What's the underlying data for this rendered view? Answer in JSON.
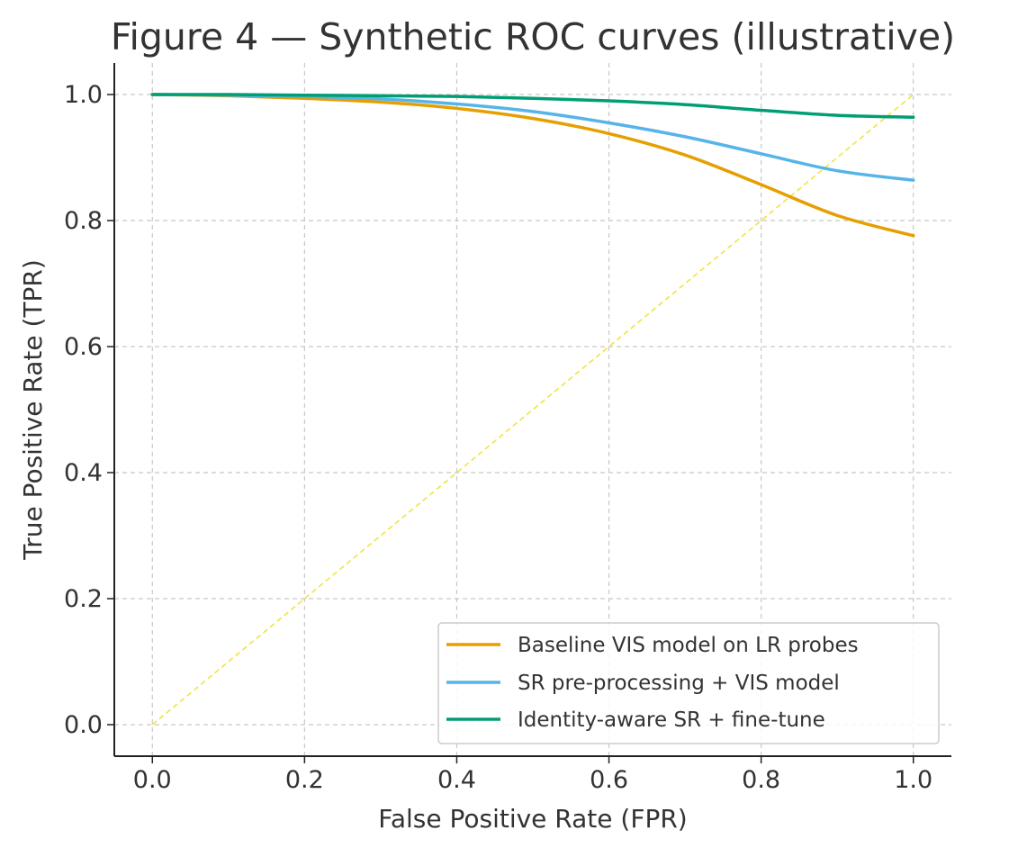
{
  "chart_data": {
    "type": "line",
    "title": "Figure 4 — Synthetic ROC curves (illustrative)",
    "xlabel": "False Positive Rate (FPR)",
    "ylabel": "True Positive Rate (TPR)",
    "xlim": [
      -0.05,
      1.05
    ],
    "ylim": [
      -0.05,
      1.05
    ],
    "xticks": [
      "0.0",
      "0.2",
      "0.4",
      "0.6",
      "0.8",
      "1.0"
    ],
    "yticks": [
      "0.0",
      "0.2",
      "0.4",
      "0.6",
      "0.8",
      "1.0"
    ],
    "grid": true,
    "legend_position": "lower-right",
    "series": [
      {
        "name": "Baseline VIS model on LR probes",
        "color": "#E69F00",
        "x": [
          0.0,
          0.1,
          0.2,
          0.3,
          0.4,
          0.5,
          0.6,
          0.7,
          0.8,
          0.9,
          1.0
        ],
        "y": [
          1.0,
          0.998,
          0.994,
          0.988,
          0.978,
          0.962,
          0.938,
          0.904,
          0.857,
          0.808,
          0.776
        ]
      },
      {
        "name": "SR pre-processing + VIS model",
        "color": "#56B4E9",
        "x": [
          0.0,
          0.1,
          0.2,
          0.3,
          0.4,
          0.5,
          0.6,
          0.7,
          0.8,
          0.9,
          1.0
        ],
        "y": [
          1.0,
          0.999,
          0.997,
          0.993,
          0.985,
          0.973,
          0.955,
          0.933,
          0.906,
          0.879,
          0.864
        ]
      },
      {
        "name": "Identity-aware SR + fine-tune",
        "color": "#009E73",
        "x": [
          0.0,
          0.1,
          0.2,
          0.3,
          0.4,
          0.5,
          0.6,
          0.7,
          0.8,
          0.9,
          1.0
        ],
        "y": [
          1.0,
          1.0,
          0.999,
          0.998,
          0.997,
          0.994,
          0.99,
          0.984,
          0.975,
          0.967,
          0.964
        ]
      }
    ],
    "reference_line": {
      "x": [
        0.0,
        1.0
      ],
      "y": [
        0.0,
        1.0
      ],
      "color": "#F0E442",
      "style": "dashed"
    }
  }
}
